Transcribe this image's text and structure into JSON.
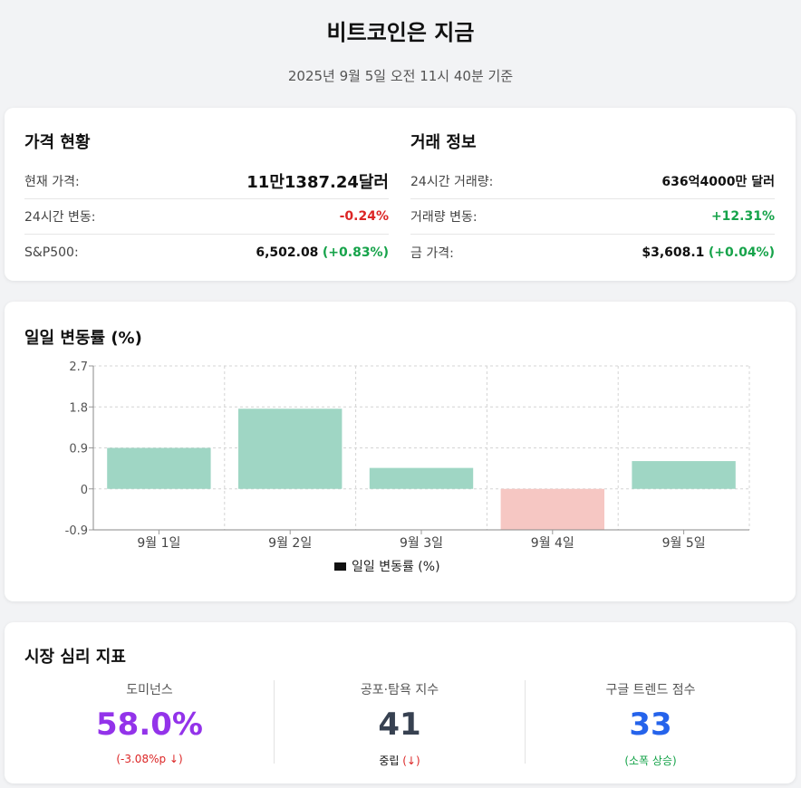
{
  "header": {
    "title": "비트코인은 지금",
    "subtitle": "2025년 9월 5일 오전 11시 40분 기준"
  },
  "price_status": {
    "heading": "가격 현황",
    "rows": [
      {
        "label": "현재 가격:",
        "value": "11만1387.24달러",
        "change": ""
      },
      {
        "label": "24시간 변동:",
        "value": "",
        "change": "-0.24%"
      },
      {
        "label": "S&P500:",
        "value": "6,502.08",
        "change": "(+0.83%)"
      }
    ]
  },
  "trade_info": {
    "heading": "거래 정보",
    "rows": [
      {
        "label": "24시간 거래량:",
        "value": "636억4000만 달러",
        "change": ""
      },
      {
        "label": "거래량 변동:",
        "value": "",
        "change": "+12.31%"
      },
      {
        "label": "금 가격:",
        "value": "$3,608.1",
        "change": "(+0.04%)"
      }
    ]
  },
  "daily_chart": {
    "heading": "일일 변동률 (%)"
  },
  "chart_data": {
    "type": "bar",
    "categories": [
      "9월 1일",
      "9월 2일",
      "9월 3일",
      "9월 4일",
      "9월 5일"
    ],
    "series": [
      {
        "name": "일일 변동률 (%)",
        "values": [
          0.9,
          1.76,
          0.46,
          -0.9,
          0.61
        ]
      }
    ],
    "ylim": [
      -0.9,
      2.7
    ],
    "yticks": [
      "-0.9",
      "0",
      "0.9",
      "1.8",
      "2.7"
    ],
    "grid": true,
    "legend": "bottom",
    "colors": {
      "positive": "#9fd6c4",
      "negative": "#f6c7c3"
    }
  },
  "sentiment": {
    "heading": "시장 심리 지표",
    "metrics": [
      {
        "label": "도미넌스",
        "value": "58.0%",
        "note": "(-3.08%p ↓)",
        "value_color": "#9333ea",
        "note_color": "#dc2626"
      },
      {
        "label": "공포·탐욕 지수",
        "value": "41",
        "note_main": "중립",
        "note_arrow": "(↓)",
        "value_color": "#374151",
        "note_color": "#dc2626"
      },
      {
        "label": "구글 트렌드 점수",
        "value": "33",
        "note": "(소폭 상승)",
        "value_color": "#2563eb",
        "note_color": "#16a34a"
      }
    ]
  }
}
